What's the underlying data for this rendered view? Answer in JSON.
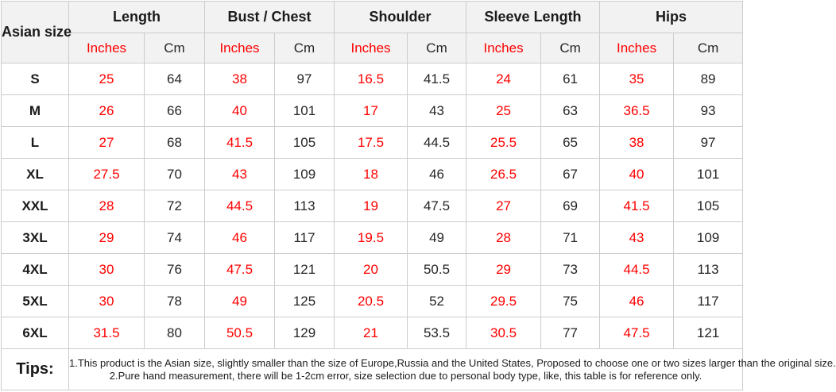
{
  "colors": {
    "inches_text": "#ff0000",
    "cm_text": "#262626",
    "header_bg": "#f2f2f2",
    "border": "#cccccc"
  },
  "table": {
    "corner_header": "Asian size",
    "groups": [
      {
        "label": "Length"
      },
      {
        "label": "Bust / Chest"
      },
      {
        "label": "Shoulder"
      },
      {
        "label": "Sleeve Length"
      },
      {
        "label": "Hips"
      }
    ],
    "subheaders": {
      "inches": "Inches",
      "cm": "Cm"
    },
    "rows": [
      {
        "size": "S",
        "values": [
          "25",
          "64",
          "38",
          "97",
          "16.5",
          "41.5",
          "24",
          "61",
          "35",
          "89"
        ]
      },
      {
        "size": "M",
        "values": [
          "26",
          "66",
          "40",
          "101",
          "17",
          "43",
          "25",
          "63",
          "36.5",
          "93"
        ]
      },
      {
        "size": "L",
        "values": [
          "27",
          "68",
          "41.5",
          "105",
          "17.5",
          "44.5",
          "25.5",
          "65",
          "38",
          "97"
        ]
      },
      {
        "size": "XL",
        "values": [
          "27.5",
          "70",
          "43",
          "109",
          "18",
          "46",
          "26.5",
          "67",
          "40",
          "101"
        ]
      },
      {
        "size": "XXL",
        "values": [
          "28",
          "72",
          "44.5",
          "113",
          "19",
          "47.5",
          "27",
          "69",
          "41.5",
          "105"
        ]
      },
      {
        "size": "3XL",
        "values": [
          "29",
          "74",
          "46",
          "117",
          "19.5",
          "49",
          "28",
          "71",
          "43",
          "109"
        ]
      },
      {
        "size": "4XL",
        "values": [
          "30",
          "76",
          "47.5",
          "121",
          "20",
          "50.5",
          "29",
          "73",
          "44.5",
          "113"
        ]
      },
      {
        "size": "5XL",
        "values": [
          "30",
          "78",
          "49",
          "125",
          "20.5",
          "52",
          "29.5",
          "75",
          "46",
          "117"
        ]
      },
      {
        "size": "6XL",
        "values": [
          "31.5",
          "80",
          "50.5",
          "129",
          "21",
          "53.5",
          "30.5",
          "77",
          "47.5",
          "121"
        ]
      }
    ]
  },
  "tips": {
    "label": "Tips:",
    "lines": [
      "1.This product is the Asian size, slightly smaller than the size of Europe,Russia and the United States, Proposed to choose one or two sizes larger than the original size.",
      "2.Pure hand measurement, there will be 1-2cm error, size selection due to personal body type, like, this table is for reference only."
    ]
  }
}
